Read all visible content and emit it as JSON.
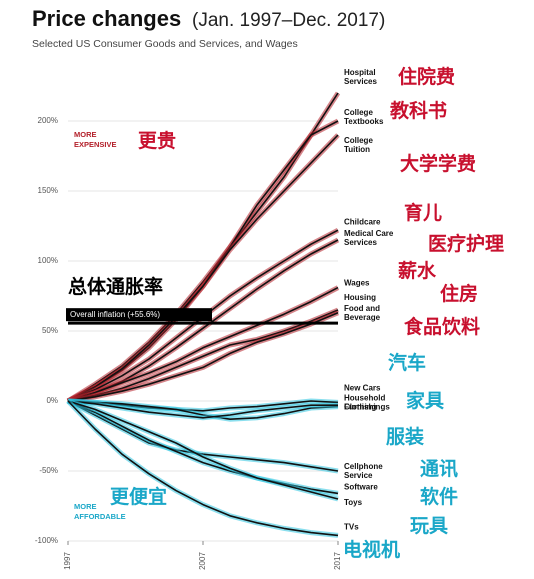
{
  "chart_data": {
    "type": "line",
    "title": "Price changes",
    "title_range": "(Jan. 1997–Dec. 2017)",
    "subtitle": "Selected US Consumer Goods and Services, and Wages",
    "x": [
      1997,
      1999,
      2001,
      2003,
      2005,
      2007,
      2009,
      2011,
      2013,
      2015,
      2017
    ],
    "xlim": [
      1997,
      2017
    ],
    "xticks": [
      1997,
      2007,
      2017
    ],
    "ylim": [
      -100,
      230
    ],
    "yticks": [
      {
        "value": -100,
        "label": "-100%"
      },
      {
        "value": -50,
        "label": "-50%"
      },
      {
        "value": 0,
        "label": "0%"
      },
      {
        "value": 50,
        "label": "50%"
      },
      {
        "value": 100,
        "label": "100%"
      },
      {
        "value": 150,
        "label": "150%"
      },
      {
        "value": 200,
        "label": "200%"
      }
    ],
    "grid": true,
    "series": [
      {
        "name": "Hospital Services",
        "color": "#b3202a",
        "values": [
          0,
          12,
          25,
          42,
          62,
          85,
          110,
          135,
          160,
          190,
          220
        ]
      },
      {
        "name": "College Textbooks",
        "color": "#b3202a",
        "values": [
          0,
          10,
          22,
          38,
          58,
          82,
          110,
          140,
          165,
          190,
          200
        ]
      },
      {
        "name": "College Tuition",
        "color": "#b3202a",
        "values": [
          0,
          10,
          23,
          40,
          60,
          82,
          108,
          130,
          150,
          170,
          190
        ]
      },
      {
        "name": "Childcare",
        "color": "#b3202a",
        "values": [
          0,
          8,
          18,
          30,
          45,
          60,
          75,
          88,
          100,
          112,
          122
        ]
      },
      {
        "name": "Medical Care Services",
        "color": "#b3202a",
        "values": [
          0,
          6,
          14,
          25,
          38,
          52,
          66,
          80,
          93,
          105,
          115
        ]
      },
      {
        "name": "Wages",
        "color": "#b3202a",
        "values": [
          0,
          6,
          13,
          20,
          28,
          38,
          46,
          54,
          62,
          71,
          81
        ]
      },
      {
        "name": "Housing",
        "color": "#b3202a",
        "values": [
          0,
          4,
          9,
          16,
          24,
          32,
          40,
          44,
          50,
          57,
          65
        ]
      },
      {
        "name": "Food and Beverage",
        "color": "#b3202a",
        "values": [
          0,
          3,
          7,
          12,
          18,
          24,
          34,
          42,
          48,
          55,
          63
        ]
      },
      {
        "name": "New Cars",
        "color": "#2bc4e0",
        "values": [
          0,
          -1,
          -3,
          -5,
          -6,
          -7,
          -5,
          -4,
          -2,
          0,
          -1
        ]
      },
      {
        "name": "Household Furnishings",
        "color": "#2bc4e0",
        "values": [
          0,
          -1,
          -2,
          -4,
          -6,
          -10,
          -13,
          -12,
          -9,
          -5,
          -4
        ]
      },
      {
        "name": "Clothing",
        "color": "#2bc4e0",
        "values": [
          0,
          -2,
          -5,
          -8,
          -10,
          -12,
          -10,
          -7,
          -5,
          -3,
          -3
        ]
      },
      {
        "name": "Cellphone Service",
        "color": "#2bc4e0",
        "values": [
          0,
          -10,
          -20,
          -30,
          -35,
          -38,
          -40,
          -42,
          -44,
          -47,
          -50
        ]
      },
      {
        "name": "Software",
        "color": "#2bc4e0",
        "values": [
          0,
          -8,
          -18,
          -28,
          -36,
          -44,
          -50,
          -55,
          -59,
          -63,
          -66
        ]
      },
      {
        "name": "Toys",
        "color": "#2bc4e0",
        "values": [
          0,
          -6,
          -14,
          -22,
          -30,
          -40,
          -48,
          -55,
          -60,
          -65,
          -70
        ]
      },
      {
        "name": "TVs",
        "color": "#2bc4e0",
        "values": [
          0,
          -20,
          -38,
          -52,
          -64,
          -74,
          -82,
          -87,
          -91,
          -94,
          -96
        ]
      }
    ],
    "inflation": {
      "label": "Overall inflation (+55.6%)",
      "value": 55.6,
      "annotation": "总体通胀率"
    },
    "annotations": [
      {
        "text": "MORE EXPENSIVE",
        "color": "#b3202a"
      },
      {
        "text": "更贵",
        "color": "#c8102e"
      },
      {
        "text": "MORE AFFORDABLE",
        "color": "#1aa7c8"
      },
      {
        "text": "更便宜",
        "color": "#1aa7c8"
      },
      {
        "text": "住院费",
        "color": "#c8102e"
      },
      {
        "text": "教科书",
        "color": "#c8102e"
      },
      {
        "text": "大学学费",
        "color": "#c8102e"
      },
      {
        "text": "育儿",
        "color": "#c8102e"
      },
      {
        "text": "医疗护理",
        "color": "#c8102e"
      },
      {
        "text": "薪水",
        "color": "#c8102e"
      },
      {
        "text": "住房",
        "color": "#c8102e"
      },
      {
        "text": "食品饮料",
        "color": "#c8102e"
      },
      {
        "text": "汽车",
        "color": "#1aa7c8"
      },
      {
        "text": "家具",
        "color": "#1aa7c8"
      },
      {
        "text": "服装",
        "color": "#1aa7c8"
      },
      {
        "text": "通讯",
        "color": "#1aa7c8"
      },
      {
        "text": "软件",
        "color": "#1aa7c8"
      },
      {
        "text": "玩具",
        "color": "#1aa7c8"
      },
      {
        "text": "电视机",
        "color": "#1aa7c8"
      }
    ]
  }
}
